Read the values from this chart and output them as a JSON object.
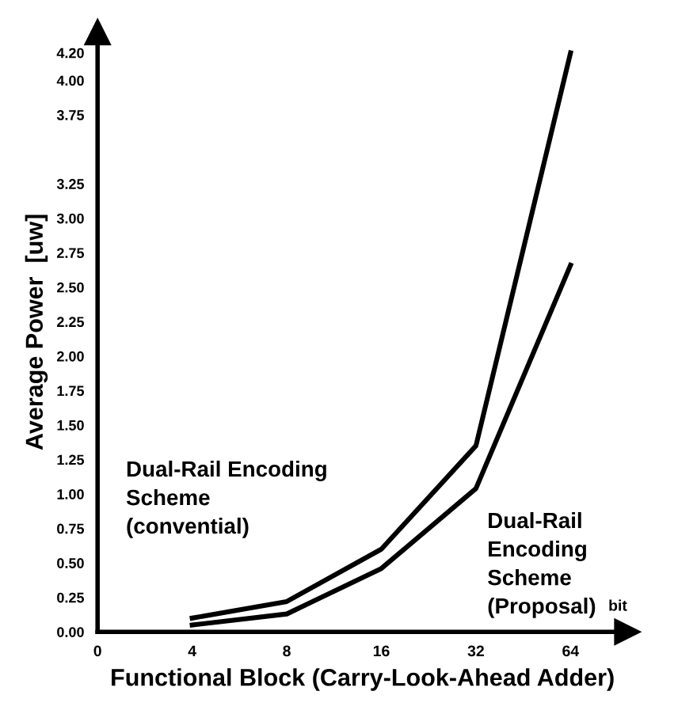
{
  "chart_data": {
    "type": "line",
    "xlabel": "Functional Block (Carry-Look-Ahead Adder)",
    "ylabel": "Average Power  [uw]",
    "categories": [
      "0",
      "4",
      "8",
      "16",
      "32",
      "64"
    ],
    "series": [
      {
        "name": "Dual-Rail Encoding\nScheme\n(convential)",
        "color": "#000000",
        "values": [
          null,
          0.1,
          0.22,
          0.6,
          1.35,
          4.2
        ]
      },
      {
        "name": "Dual-Rail\nEncoding\nScheme\n(Proposal)",
        "color": "#000000",
        "values": [
          null,
          0.05,
          0.13,
          0.46,
          1.04,
          2.66
        ]
      }
    ],
    "ylim": [
      0,
      4.35
    ],
    "yticks": [
      {
        "value": 0,
        "label": "0.00"
      },
      0.25,
      {
        "value": 0.5,
        "label": "0.50"
      },
      0.75,
      {
        "value": 1,
        "label": "1.00"
      },
      1.25,
      {
        "value": 1.5,
        "label": "1.50"
      },
      1.75,
      {
        "value": 2,
        "label": "2.00"
      },
      2.25,
      {
        "value": 2.5,
        "label": "2.50"
      },
      2.75,
      {
        "value": 3,
        "label": "3.00"
      },
      3.25,
      3.75,
      {
        "value": 4,
        "label": "4.00"
      },
      {
        "value": 4.2,
        "label": "4.20"
      }
    ],
    "annotations": [
      "bit"
    ],
    "grid": false,
    "legend": false,
    "marker": "none",
    "line_style": "solid"
  }
}
